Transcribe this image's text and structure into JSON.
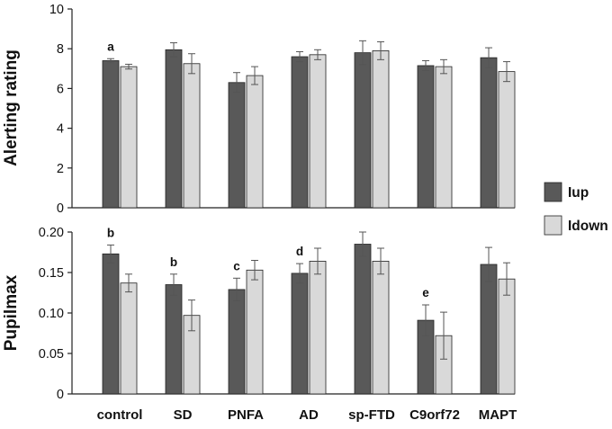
{
  "colors": {
    "up": "#595959",
    "down": "#d9d9d9",
    "stroke": "#222222",
    "error": "#555555"
  },
  "legend": [
    {
      "key": "up",
      "label": "Iup"
    },
    {
      "key": "down",
      "label": "Idown"
    }
  ],
  "chart_data": [
    {
      "type": "bar",
      "ylabel": "Alerting rating",
      "ylim": [
        0,
        10
      ],
      "yticks": [
        "0",
        "2",
        "4",
        "6",
        "8",
        "10"
      ],
      "categories": [
        "control",
        "SD",
        "PNFA",
        "AD",
        "sp-FTD",
        "C9orf72",
        "MAPT"
      ],
      "series": [
        {
          "name": "Iup",
          "key": "up",
          "values": [
            7.4,
            7.95,
            6.3,
            7.6,
            7.8,
            7.15,
            7.55
          ],
          "errors": [
            0.1,
            0.35,
            0.5,
            0.25,
            0.6,
            0.25,
            0.5
          ]
        },
        {
          "name": "Idown",
          "key": "down",
          "values": [
            7.1,
            7.25,
            6.65,
            7.7,
            7.9,
            7.1,
            6.85
          ],
          "errors": [
            0.12,
            0.5,
            0.45,
            0.25,
            0.45,
            0.35,
            0.5
          ]
        }
      ],
      "annotations": [
        "a",
        "",
        "",
        "",
        "",
        "",
        ""
      ]
    },
    {
      "type": "bar",
      "ylabel": "Pupilmax",
      "ylim": [
        0,
        0.2
      ],
      "yticks": [
        "0",
        "0.05",
        "0.10",
        "0.15",
        "0.20"
      ],
      "categories": [
        "control",
        "SD",
        "PNFA",
        "AD",
        "sp-FTD",
        "C9orf72",
        "MAPT"
      ],
      "series": [
        {
          "name": "Iup",
          "key": "up",
          "values": [
            0.173,
            0.135,
            0.129,
            0.149,
            0.185,
            0.091,
            0.16
          ],
          "errors": [
            0.011,
            0.013,
            0.014,
            0.012,
            0.015,
            0.019,
            0.021
          ]
        },
        {
          "name": "Idown",
          "key": "down",
          "values": [
            0.137,
            0.097,
            0.153,
            0.164,
            0.164,
            0.072,
            0.142
          ],
          "errors": [
            0.011,
            0.019,
            0.012,
            0.016,
            0.016,
            0.029,
            0.02
          ]
        }
      ],
      "annotations": [
        "b",
        "b",
        "c",
        "d",
        "",
        "e",
        ""
      ]
    }
  ]
}
